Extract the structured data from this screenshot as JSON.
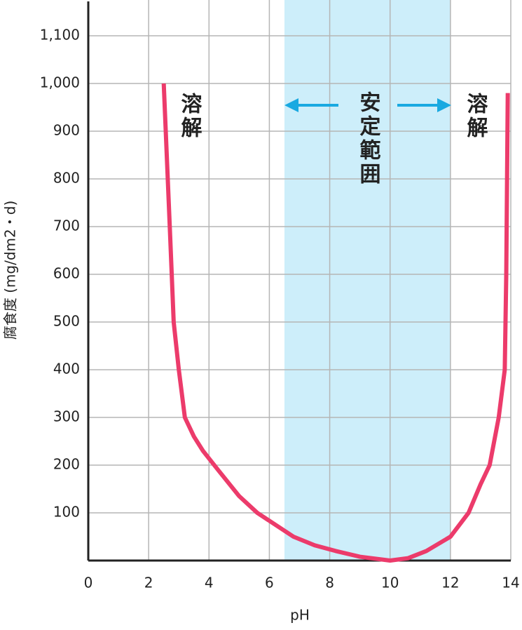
{
  "chart_data": {
    "type": "line",
    "x_label": "pH",
    "y_label": "腐食度 (mg/dm2・d)",
    "annotations": [
      "溶解",
      "安定範囲",
      "溶解"
    ],
    "shaded_range": [
      6.5,
      12
    ],
    "shade_color": "#cdeefa",
    "arrow_color": "#19a9e1",
    "series": [
      {
        "color": "#ec3b6b",
        "x": [
          2.5,
          2.6,
          2.7,
          2.83,
          3.0,
          3.2,
          3.5,
          3.8,
          4.3,
          5.0,
          5.6,
          6.2,
          6.8,
          7.5,
          8.2,
          9,
          10,
          10.6,
          11.2,
          12,
          12.6,
          13.0,
          13.3,
          13.6,
          13.8,
          13.85,
          13.9
        ],
        "values": [
          1000,
          850,
          700,
          500,
          400,
          300,
          260,
          230,
          190,
          135,
          100,
          75,
          50,
          32,
          20,
          8,
          0,
          5,
          20,
          50,
          100,
          160,
          200,
          300,
          400,
          600,
          980
        ]
      }
    ],
    "xlim": [
      0,
      14
    ],
    "xticks": [
      0,
      2,
      4,
      6,
      8,
      10,
      12,
      14
    ],
    "ylim": [
      0,
      1175
    ],
    "yticks": [
      100,
      200,
      300,
      400,
      500,
      600,
      700,
      800,
      900,
      {
        "value": 1000,
        "label": "1,000"
      },
      {
        "value": 1100,
        "label": "1,100"
      }
    ],
    "grid": true
  }
}
